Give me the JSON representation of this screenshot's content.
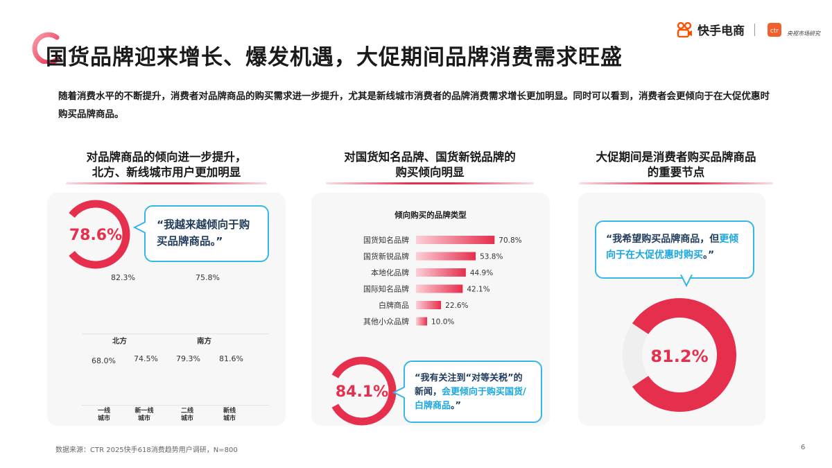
{
  "header": {
    "title": "国货品牌迎来增长、爆发机遇，大促期间品牌消费需求旺盛",
    "brand_name": "快手电商",
    "ctr_sub": "央视市场研究",
    "ctr_mark": "ctr"
  },
  "intro": "随着消费水平的不断提升，消费者对品牌商品的购买需求进一步提升，尤其是新线城市消费者的品牌消费需求增长更加明显。同时可以看到，消费者会更倾向于在大促优惠时购买品牌商品。",
  "columns": {
    "left": {
      "title_line1": "对品牌商品的倾向进一步提升，",
      "title_line2": "北方、新线城市用户更加明显",
      "quote": "“我越来越倾向于购买品牌商品。”"
    },
    "middle": {
      "title_line1": "对国货知名品牌、国货新锐品牌的",
      "title_line2": "购买倾向明显",
      "quote_plain": "“我有关注到“对等关税”的新闻，",
      "quote_highlight": "会更倾向于购买国货/白牌商品",
      "quote_end": "。”"
    },
    "right": {
      "title_line1": "大促期间是消费者购买品牌商品",
      "title_line2": "的重要节点",
      "quote_plain": "“我希望购买品牌商品，但",
      "quote_highlight": "更倾向于在大促优惠时购买",
      "quote_end": "。”"
    }
  },
  "chart_data": [
    {
      "type": "pie",
      "chart_name": "left-donut",
      "values": [
        78.6
      ],
      "label": "78.6%"
    },
    {
      "type": "bar",
      "chart_name": "region-values",
      "categories": [
        "北方",
        "南方"
      ],
      "values": [
        82.3,
        75.8
      ],
      "value_labels": [
        "82.3%",
        "75.8%"
      ]
    },
    {
      "type": "bar",
      "chart_name": "city-tier-values",
      "categories": [
        "一线城市",
        "新一线城市",
        "二线城市",
        "新线城市"
      ],
      "category_lines": [
        [
          "一线",
          "城市"
        ],
        [
          "新一线",
          "城市"
        ],
        [
          "二线",
          "城市"
        ],
        [
          "新线",
          "城市"
        ]
      ],
      "values": [
        68.0,
        74.5,
        79.3,
        81.6
      ],
      "value_labels": [
        "68.0%",
        "74.5%",
        "79.3%",
        "81.6%"
      ]
    },
    {
      "type": "bar",
      "chart_name": "brand-type-bars",
      "title": "倾向购买的品牌类型",
      "categories": [
        "国货知名品牌",
        "国货新锐品牌",
        "本地化品牌",
        "国际知名品牌",
        "白牌商品",
        "其他小众品牌"
      ],
      "values": [
        70.8,
        53.8,
        44.9,
        42.1,
        22.6,
        10.0
      ],
      "value_labels": [
        "70.8%",
        "53.8%",
        "44.9%",
        "42.1%",
        "22.6%",
        "10.0%"
      ]
    },
    {
      "type": "pie",
      "chart_name": "middle-donut",
      "values": [
        84.1
      ],
      "label": "84.1%"
    },
    {
      "type": "pie",
      "chart_name": "right-donut",
      "values": [
        81.2
      ],
      "label": "81.2%"
    }
  ],
  "colors": {
    "accent": "#e62e4d",
    "accent_light": "#f7a3b3",
    "bubble_border": "#33b8e6",
    "highlight_text": "#1aa6e0",
    "panel_bg": "#f7f7f8",
    "donut_rest": "#efefef",
    "brand_orange": "#ff5000"
  },
  "footer": {
    "source": "数据来源：CTR 2025快手618消费趋势用户调研，N=800",
    "page": "6"
  }
}
